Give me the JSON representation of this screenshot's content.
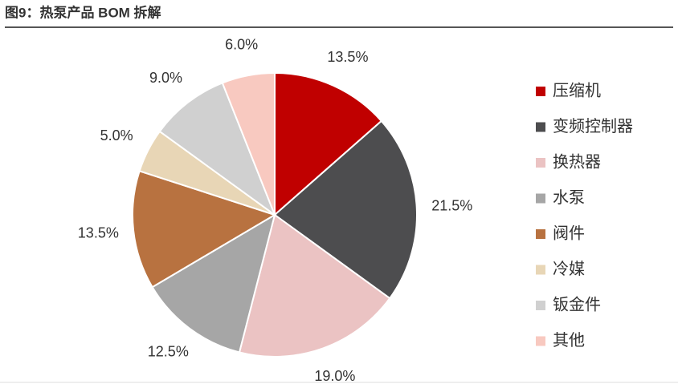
{
  "chart_data": {
    "type": "pie",
    "title": "图9：热泵产品 BOM 拆解",
    "categories": [
      "压缩机",
      "变频控制器",
      "换热器",
      "水泵",
      "阀件",
      "冷媒",
      "钣金件",
      "其他"
    ],
    "values": [
      13.5,
      21.5,
      19.0,
      12.5,
      13.5,
      5.0,
      9.0,
      6.0
    ],
    "value_labels": [
      "13.5%",
      "21.5%",
      "19.0%",
      "12.5%",
      "13.5%",
      "5.0%",
      "9.0%",
      "6.0%"
    ],
    "colors": [
      "#c00000",
      "#4d4d4f",
      "#ebc3c3",
      "#a6a6a6",
      "#b87240",
      "#e8d6b6",
      "#d0d0d0",
      "#f8c9c0"
    ],
    "legend": "right"
  }
}
